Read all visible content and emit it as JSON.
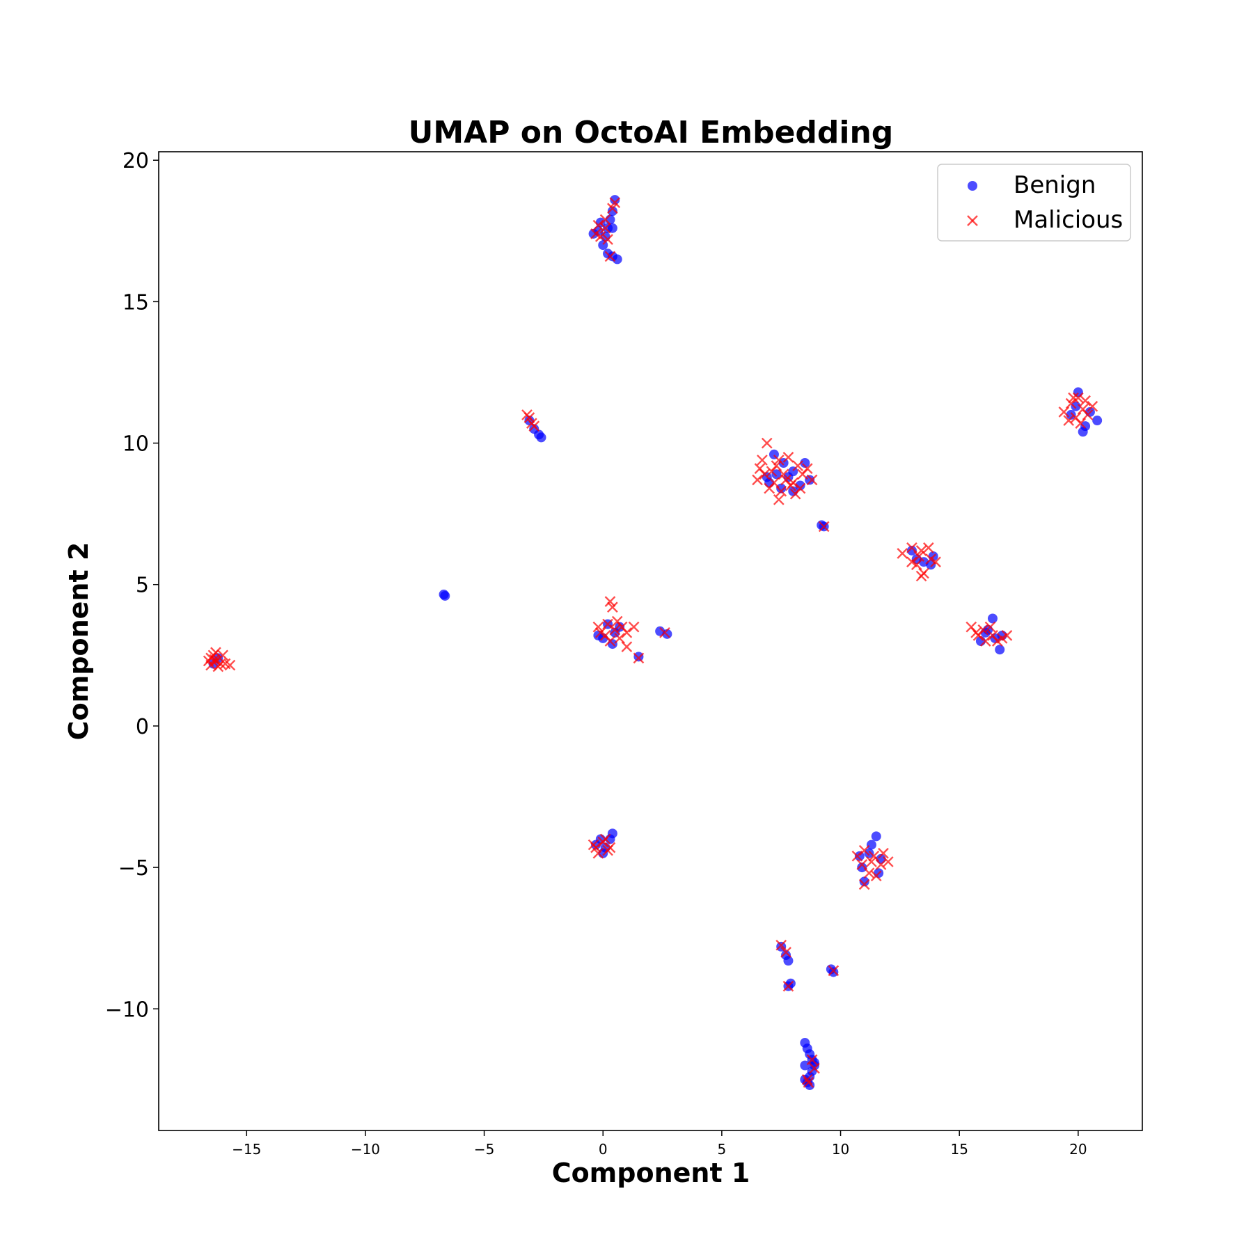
{
  "chart_data": {
    "type": "scatter",
    "title": "UMAP on OctoAI Embedding",
    "xlabel": "Component 1",
    "ylabel": "Component 2",
    "xlim": [
      -18.7,
      22.7
    ],
    "ylim": [
      -14.3,
      20.3
    ],
    "xticks": [
      -15,
      -10,
      -5,
      0,
      5,
      10,
      15,
      20
    ],
    "yticks": [
      -10,
      -5,
      0,
      5,
      10,
      15,
      20
    ],
    "xtick_labels": [
      "−15",
      "−10",
      "−5",
      "0",
      "5",
      "10",
      "15",
      "20"
    ],
    "ytick_labels": [
      "−10",
      "−5",
      "0",
      "5",
      "10",
      "15",
      "20"
    ],
    "grid": false,
    "legend_position": "top-right",
    "series": [
      {
        "name": "Benign",
        "marker": "circle",
        "color": "#0000ff",
        "points": [
          [
            -6.7,
            4.65
          ],
          [
            -6.65,
            4.6
          ],
          [
            0.5,
            18.6
          ],
          [
            0.4,
            18.2
          ],
          [
            0.3,
            17.9
          ],
          [
            0.2,
            17.6
          ],
          [
            -0.1,
            17.8
          ],
          [
            -0.2,
            17.5
          ],
          [
            -0.4,
            17.4
          ],
          [
            0.1,
            17.3
          ],
          [
            0.4,
            17.6
          ],
          [
            0.0,
            17.0
          ],
          [
            0.2,
            16.7
          ],
          [
            0.4,
            16.6
          ],
          [
            0.6,
            16.5
          ],
          [
            -2.7,
            10.3
          ],
          [
            -2.6,
            10.2
          ],
          [
            -2.9,
            10.5
          ],
          [
            -3.1,
            10.8
          ],
          [
            7.2,
            9.6
          ],
          [
            7.6,
            9.3
          ],
          [
            8.0,
            9.0
          ],
          [
            8.5,
            9.3
          ],
          [
            7.0,
            8.6
          ],
          [
            7.5,
            8.4
          ],
          [
            8.0,
            8.3
          ],
          [
            8.7,
            8.7
          ],
          [
            6.9,
            8.8
          ],
          [
            7.8,
            8.8
          ],
          [
            8.3,
            8.5
          ],
          [
            7.3,
            8.9
          ],
          [
            9.2,
            7.1
          ],
          [
            9.3,
            7.05
          ],
          [
            13.0,
            6.2
          ],
          [
            13.5,
            5.8
          ],
          [
            13.9,
            6.0
          ],
          [
            13.8,
            5.7
          ],
          [
            13.2,
            5.9
          ],
          [
            15.9,
            3.0
          ],
          [
            16.4,
            3.8
          ],
          [
            16.2,
            3.4
          ],
          [
            16.7,
            2.7
          ],
          [
            16.5,
            3.1
          ],
          [
            16.1,
            3.3
          ],
          [
            16.8,
            3.2
          ],
          [
            19.7,
            11.0
          ],
          [
            20.0,
            11.8
          ],
          [
            20.3,
            10.6
          ],
          [
            20.8,
            10.8
          ],
          [
            19.9,
            11.3
          ],
          [
            20.5,
            11.1
          ],
          [
            20.2,
            10.4
          ],
          [
            0.0,
            3.1
          ],
          [
            0.4,
            2.9
          ],
          [
            0.7,
            3.5
          ],
          [
            0.2,
            3.6
          ],
          [
            -0.2,
            3.2
          ],
          [
            0.5,
            3.3
          ],
          [
            2.4,
            3.35
          ],
          [
            2.7,
            3.25
          ],
          [
            1.5,
            2.45
          ],
          [
            -16.4,
            2.2
          ],
          [
            -16.2,
            2.4
          ],
          [
            -0.3,
            -4.2
          ],
          [
            0.0,
            -4.5
          ],
          [
            0.3,
            -4.0
          ],
          [
            0.4,
            -3.8
          ],
          [
            0.1,
            -4.3
          ],
          [
            -0.1,
            -4.0
          ],
          [
            11.5,
            -3.9
          ],
          [
            11.2,
            -4.5
          ],
          [
            10.9,
            -5.0
          ],
          [
            11.6,
            -5.2
          ],
          [
            11.0,
            -5.5
          ],
          [
            11.3,
            -4.2
          ],
          [
            11.7,
            -4.7
          ],
          [
            10.8,
            -4.6
          ],
          [
            7.5,
            -7.8
          ],
          [
            7.7,
            -8.1
          ],
          [
            7.8,
            -8.3
          ],
          [
            7.9,
            -9.1
          ],
          [
            7.8,
            -9.2
          ],
          [
            9.6,
            -8.6
          ],
          [
            9.7,
            -8.7
          ],
          [
            8.5,
            -11.2
          ],
          [
            8.6,
            -11.4
          ],
          [
            8.7,
            -11.6
          ],
          [
            8.8,
            -11.8
          ],
          [
            8.9,
            -12.0
          ],
          [
            8.8,
            -12.2
          ],
          [
            8.7,
            -12.4
          ],
          [
            8.6,
            -12.6
          ],
          [
            8.5,
            -12.0
          ],
          [
            8.7,
            -12.7
          ],
          [
            8.9,
            -11.9
          ],
          [
            8.5,
            -12.5
          ]
        ]
      },
      {
        "name": "Malicious",
        "marker": "x",
        "color": "#ff0000",
        "points": [
          [
            0.5,
            18.5
          ],
          [
            0.4,
            18.3
          ],
          [
            -0.2,
            17.7
          ],
          [
            0.1,
            17.6
          ],
          [
            -0.3,
            17.4
          ],
          [
            0.2,
            17.2
          ],
          [
            0.3,
            16.6
          ],
          [
            0.1,
            17.9
          ],
          [
            -0.1,
            17.3
          ],
          [
            -3.1,
            10.9
          ],
          [
            -3.0,
            10.7
          ],
          [
            -2.9,
            10.6
          ],
          [
            -3.2,
            11.0
          ],
          [
            -16.3,
            2.3
          ],
          [
            -16.5,
            2.4
          ],
          [
            -16.1,
            2.2
          ],
          [
            -16.4,
            2.5
          ],
          [
            -16.2,
            2.1
          ],
          [
            -15.9,
            2.2
          ],
          [
            -16.6,
            2.3
          ],
          [
            -16.0,
            2.5
          ],
          [
            -16.3,
            2.6
          ],
          [
            -16.5,
            2.15
          ],
          [
            -15.7,
            2.15
          ],
          [
            -16.35,
            2.35
          ],
          [
            0.3,
            4.4
          ],
          [
            0.4,
            4.2
          ],
          [
            0.2,
            3.6
          ],
          [
            0.5,
            3.4
          ],
          [
            -0.2,
            3.5
          ],
          [
            0.7,
            3.1
          ],
          [
            1.0,
            3.3
          ],
          [
            1.3,
            3.5
          ],
          [
            0.1,
            3.2
          ],
          [
            0.6,
            3.7
          ],
          [
            1.0,
            2.8
          ],
          [
            0.3,
            3.0
          ],
          [
            -0.1,
            3.3
          ],
          [
            0.8,
            3.5
          ],
          [
            1.5,
            2.4
          ],
          [
            2.6,
            3.3
          ],
          [
            6.9,
            10.0
          ],
          [
            7.3,
            9.2
          ],
          [
            7.8,
            9.5
          ],
          [
            8.2,
            9.2
          ],
          [
            6.8,
            8.9
          ],
          [
            7.2,
            8.6
          ],
          [
            7.6,
            8.9
          ],
          [
            8.0,
            8.6
          ],
          [
            8.4,
            8.9
          ],
          [
            8.8,
            8.7
          ],
          [
            7.0,
            8.4
          ],
          [
            7.5,
            8.3
          ],
          [
            8.1,
            8.2
          ],
          [
            7.4,
            8.0
          ],
          [
            6.6,
            9.1
          ],
          [
            6.5,
            8.7
          ],
          [
            7.9,
            8.5
          ],
          [
            8.6,
            9.1
          ],
          [
            7.1,
            9.0
          ],
          [
            7.7,
            8.7
          ],
          [
            8.3,
            8.4
          ],
          [
            7.4,
            9.4
          ],
          [
            6.7,
            9.4
          ],
          [
            9.3,
            7.05
          ],
          [
            12.6,
            6.1
          ],
          [
            13.0,
            6.3
          ],
          [
            13.4,
            6.2
          ],
          [
            13.2,
            5.7
          ],
          [
            13.5,
            5.4
          ],
          [
            13.8,
            5.9
          ],
          [
            13.3,
            6.0
          ],
          [
            13.7,
            6.3
          ],
          [
            13.0,
            5.8
          ],
          [
            13.4,
            5.3
          ],
          [
            14.0,
            5.8
          ],
          [
            15.5,
            3.5
          ],
          [
            15.8,
            3.2
          ],
          [
            16.1,
            3.0
          ],
          [
            16.4,
            3.2
          ],
          [
            16.8,
            3.1
          ],
          [
            17.0,
            3.2
          ],
          [
            16.3,
            3.5
          ],
          [
            16.0,
            3.4
          ],
          [
            16.6,
            3.0
          ],
          [
            15.7,
            3.3
          ],
          [
            19.4,
            11.1
          ],
          [
            19.7,
            11.4
          ],
          [
            20.0,
            11.6
          ],
          [
            20.2,
            11.2
          ],
          [
            19.9,
            10.9
          ],
          [
            20.4,
            11.0
          ],
          [
            20.6,
            11.3
          ],
          [
            19.6,
            10.8
          ],
          [
            20.1,
            10.7
          ],
          [
            19.8,
            11.6
          ],
          [
            20.3,
            11.5
          ],
          [
            -0.3,
            -4.3
          ],
          [
            0.0,
            -4.1
          ],
          [
            0.2,
            -4.4
          ],
          [
            -0.2,
            -4.5
          ],
          [
            0.1,
            -4.0
          ],
          [
            -0.4,
            -4.2
          ],
          [
            0.3,
            -4.3
          ],
          [
            10.7,
            -4.6
          ],
          [
            11.0,
            -4.4
          ],
          [
            11.4,
            -4.6
          ],
          [
            11.7,
            -4.9
          ],
          [
            12.0,
            -4.8
          ],
          [
            11.2,
            -5.2
          ],
          [
            11.0,
            -5.6
          ],
          [
            11.5,
            -5.3
          ],
          [
            10.9,
            -4.9
          ],
          [
            11.8,
            -4.5
          ],
          [
            11.3,
            -4.8
          ],
          [
            7.5,
            -7.75
          ],
          [
            7.7,
            -8.0
          ],
          [
            7.8,
            -9.2
          ],
          [
            9.7,
            -8.65
          ],
          [
            8.8,
            -11.8
          ],
          [
            8.9,
            -12.1
          ],
          [
            8.6,
            -12.5
          ],
          [
            8.65,
            -12.6
          ]
        ]
      }
    ]
  }
}
